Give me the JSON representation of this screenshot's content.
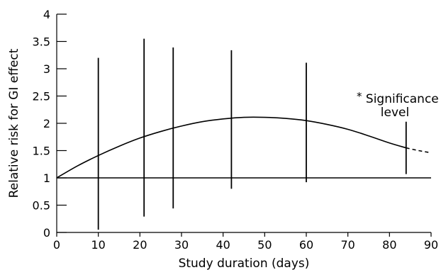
{
  "chart_data": {
    "type": "line",
    "title": "",
    "xlabel": "Study duration (days)",
    "ylabel": "Relative risk for GI effect",
    "xlim": [
      0,
      90
    ],
    "ylim": [
      0,
      4
    ],
    "xticks": [
      "0",
      "10",
      "20",
      "30",
      "40",
      "50",
      "60",
      "70",
      "80",
      "90"
    ],
    "yticks": [
      "0",
      "0.5",
      "1",
      "1.5",
      "2",
      "2.5",
      "3",
      "3.5",
      "4"
    ],
    "reference_line": {
      "y": 1
    },
    "curve": {
      "x": [
        0,
        5,
        10,
        15,
        20,
        25,
        30,
        35,
        40,
        45,
        50,
        55,
        60,
        65,
        70,
        75,
        80,
        84
      ],
      "y": [
        1.0,
        1.22,
        1.41,
        1.58,
        1.73,
        1.85,
        1.95,
        2.03,
        2.08,
        2.11,
        2.11,
        2.09,
        2.05,
        1.98,
        1.89,
        1.77,
        1.64,
        1.55
      ]
    },
    "curve_dashed": {
      "x": [
        84,
        87,
        90
      ],
      "y": [
        1.55,
        1.5,
        1.46
      ]
    },
    "intervals": [
      {
        "x": 10,
        "low": 0.05,
        "high": 3.2
      },
      {
        "x": 21,
        "low": 0.29,
        "high": 3.55
      },
      {
        "x": 28,
        "low": 0.44,
        "high": 3.39
      },
      {
        "x": 42,
        "low": 0.8,
        "high": 3.34
      },
      {
        "x": 60,
        "low": 0.92,
        "high": 3.11
      },
      {
        "x": 84,
        "low": 1.07,
        "high": 2.03
      }
    ],
    "annotation": {
      "star": "*",
      "line1": "Significance",
      "line2": "level"
    },
    "grid": false,
    "legend": "none"
  }
}
